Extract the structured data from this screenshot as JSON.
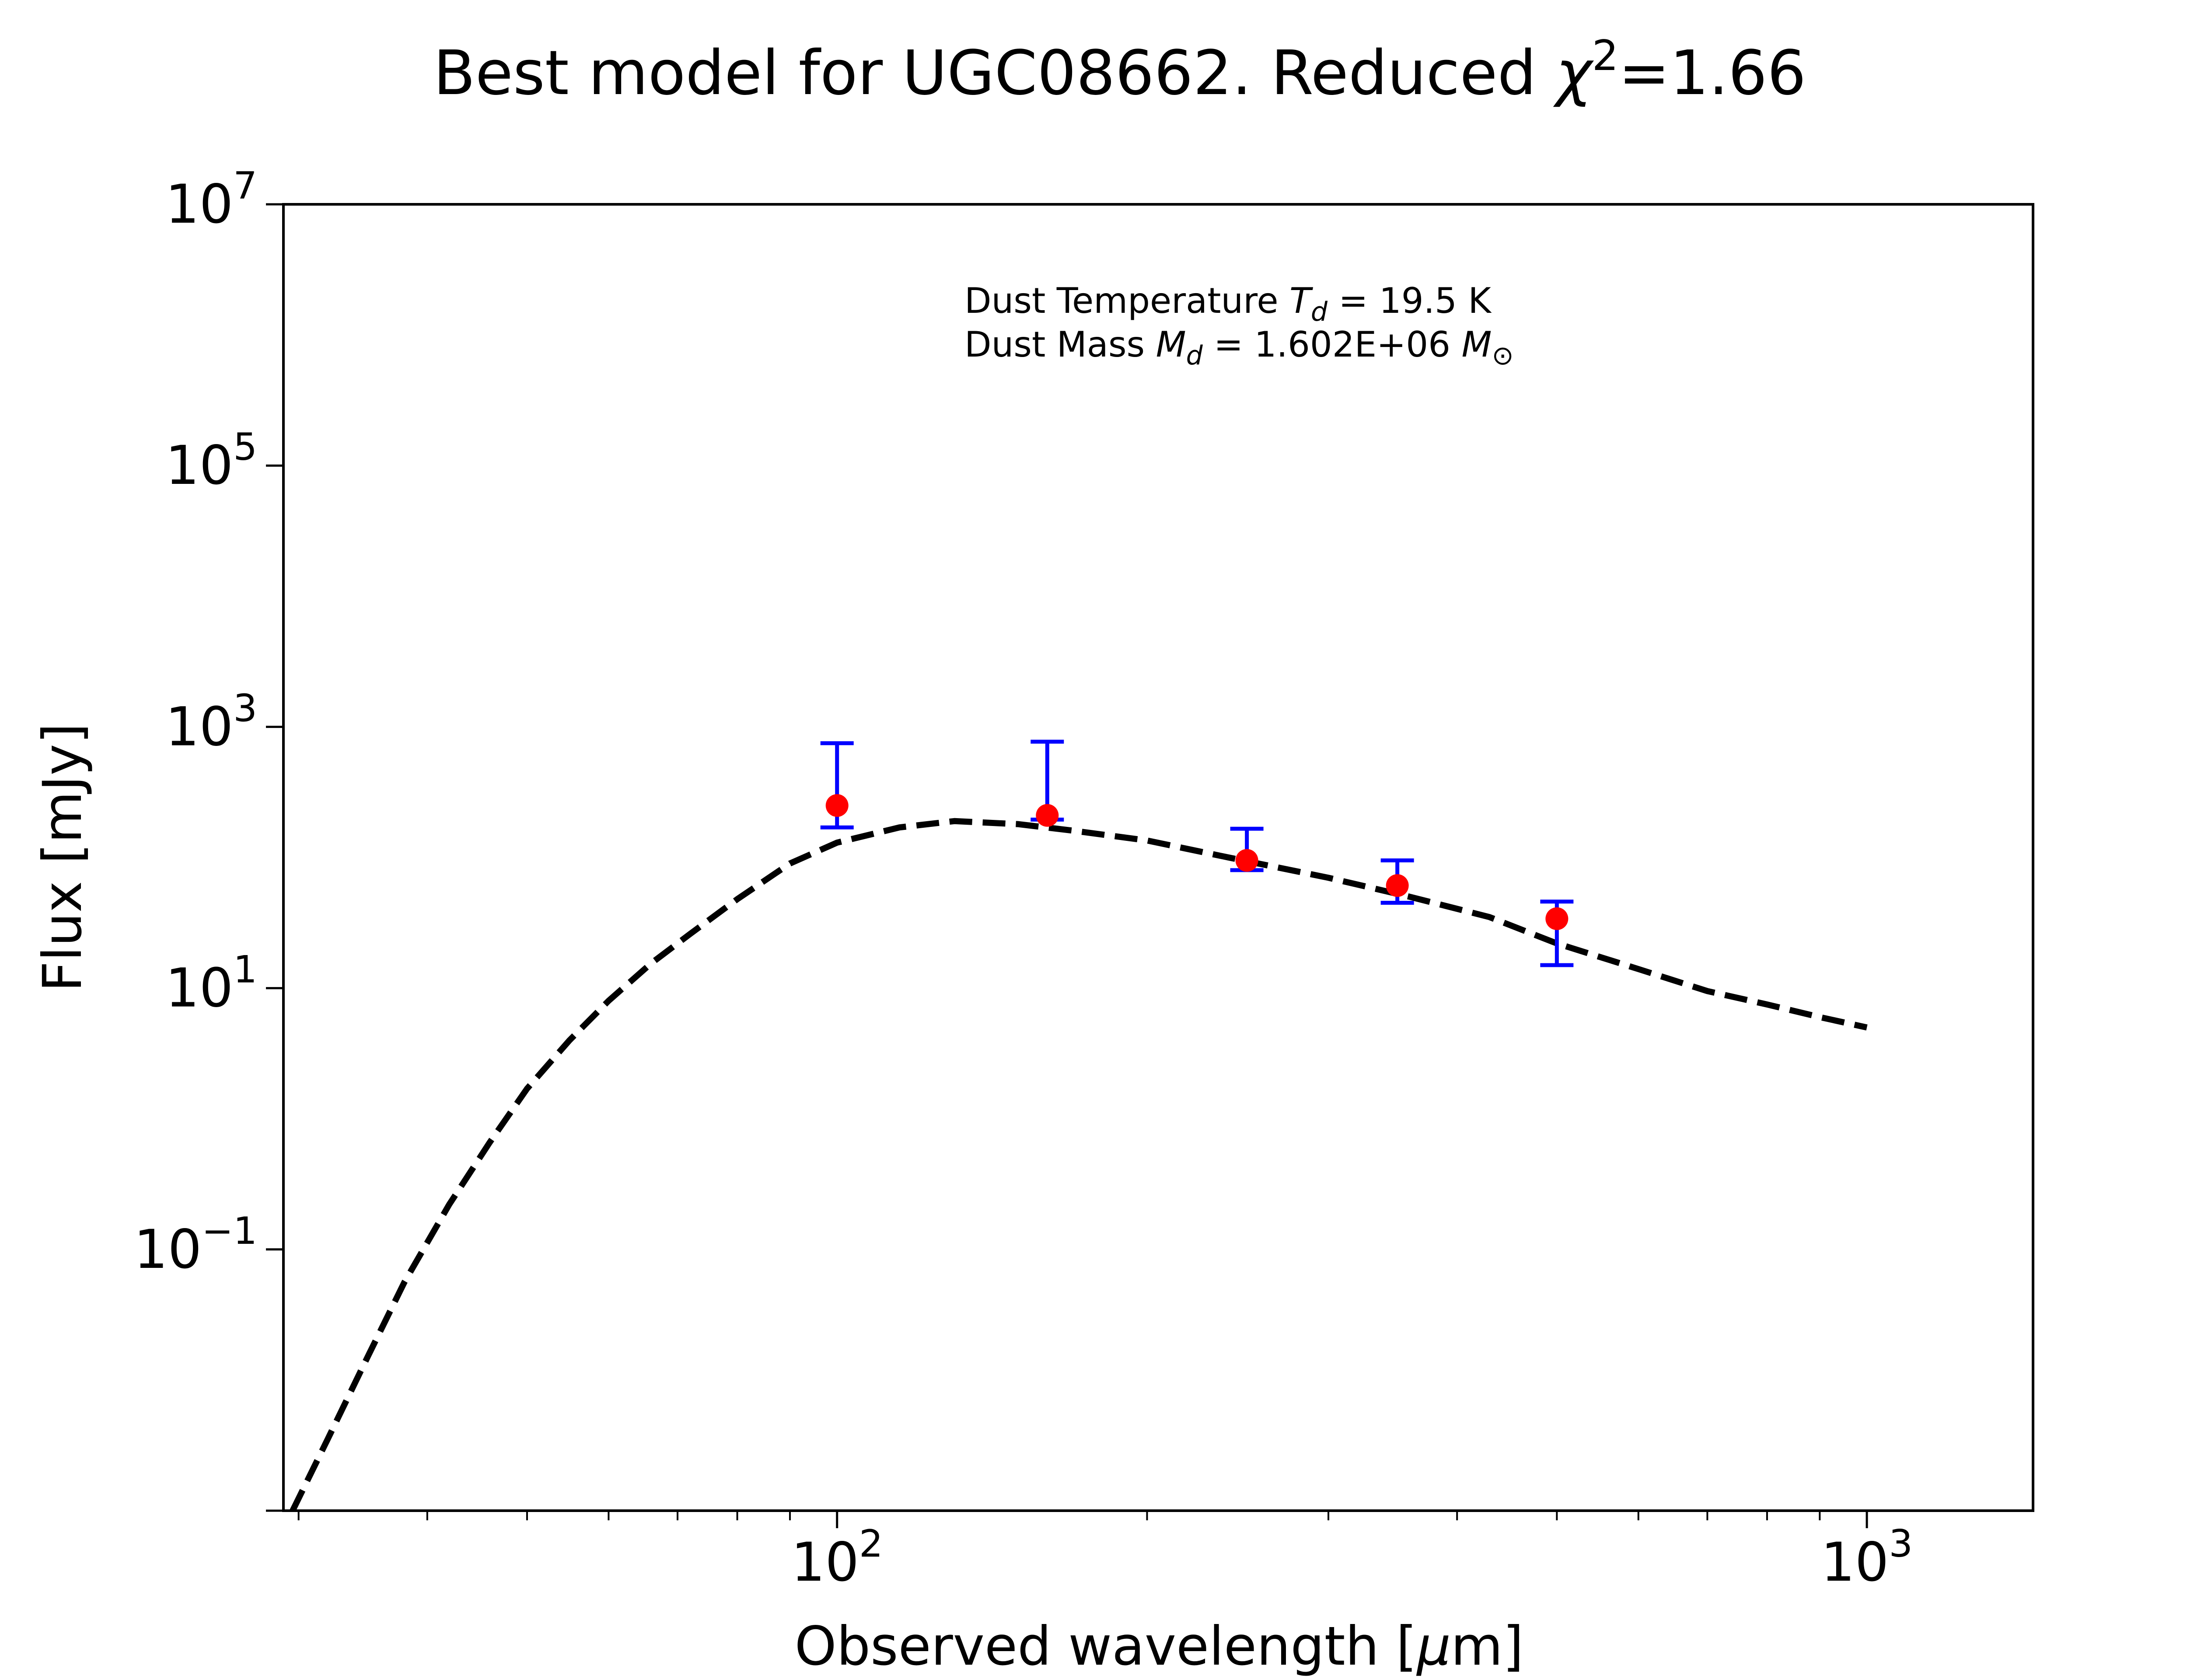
{
  "chart_data": {
    "type": "scatter",
    "title": "Best model for UGC08662. Reduced χ²=1.66",
    "title_parts": {
      "lead": "Best model for UGC08662. Reduced ",
      "chi": "χ",
      "sup": "2",
      "tail": "=1.66"
    },
    "xlabel": "Observed wavelength [μm]",
    "xlabel_parts": {
      "lead": "Observed wavelength [",
      "mu": "μ",
      "tail": "m]"
    },
    "ylabel": "Flux [mJy]",
    "xscale": "log",
    "yscale": "log",
    "xlim": [
      29.0,
      1450.0
    ],
    "ylim": [
      0.001,
      10000000
    ],
    "grid": false,
    "x_ticks": [
      {
        "value": 100,
        "base": "10",
        "exp": "2"
      },
      {
        "value": 1000,
        "base": "10",
        "exp": "3"
      }
    ],
    "y_ticks": [
      {
        "value": 0.1,
        "base": "10",
        "exp": "−1"
      },
      {
        "value": 10,
        "base": "10",
        "exp": "1"
      },
      {
        "value": 1000,
        "base": "10",
        "exp": "3"
      },
      {
        "value": 100000,
        "base": "10",
        "exp": "5"
      },
      {
        "value": 10000000,
        "base": "10",
        "exp": "7"
      }
    ],
    "annotations": [
      {
        "lead": "Dust Temperature ",
        "sym": "T",
        "sub": "d",
        "tail": " = 19.5 K"
      },
      {
        "lead": "Dust Mass ",
        "sym": "M",
        "sub": "d",
        "tail": " = 1.602E+06 ",
        "sym2": "M",
        "sub2": "⊙"
      }
    ],
    "series": [
      {
        "kind": "data",
        "color": "#ff0000",
        "errorbar_color": "#0000ff",
        "points": [
          {
            "x": 100,
            "y": 250,
            "ylow": 80,
            "yhigh": 500
          },
          {
            "x": 160,
            "y": 210,
            "ylow": 15,
            "yhigh": 560
          },
          {
            "x": 250,
            "y": 95,
            "ylow": 15,
            "yhigh": 71
          },
          {
            "x": 350,
            "y": 61,
            "ylow": 16,
            "yhigh": 34
          },
          {
            "x": 500,
            "y": 34,
            "ylow": 19,
            "yhigh": 12
          }
        ]
      },
      {
        "kind": "model",
        "style": "dashed",
        "color": "#000000",
        "model_x": [
          29.6,
          32,
          35,
          38,
          42,
          46,
          50,
          55,
          60,
          66,
          72,
          80,
          90,
          100,
          115,
          130,
          150,
          170,
          200,
          240,
          300,
          360,
          430,
          500,
          600,
          700,
          800,
          900,
          1000
        ],
        "model_y": [
          0.001,
          0.0035,
          0.015,
          0.056,
          0.22,
          0.66,
          1.7,
          4.0,
          8.0,
          15.5,
          26,
          48,
          90,
          130,
          170,
          190,
          180,
          160,
          135,
          100,
          70,
          50,
          35,
          22,
          14,
          9.5,
          7.5,
          6.0,
          5.0
        ]
      }
    ]
  }
}
